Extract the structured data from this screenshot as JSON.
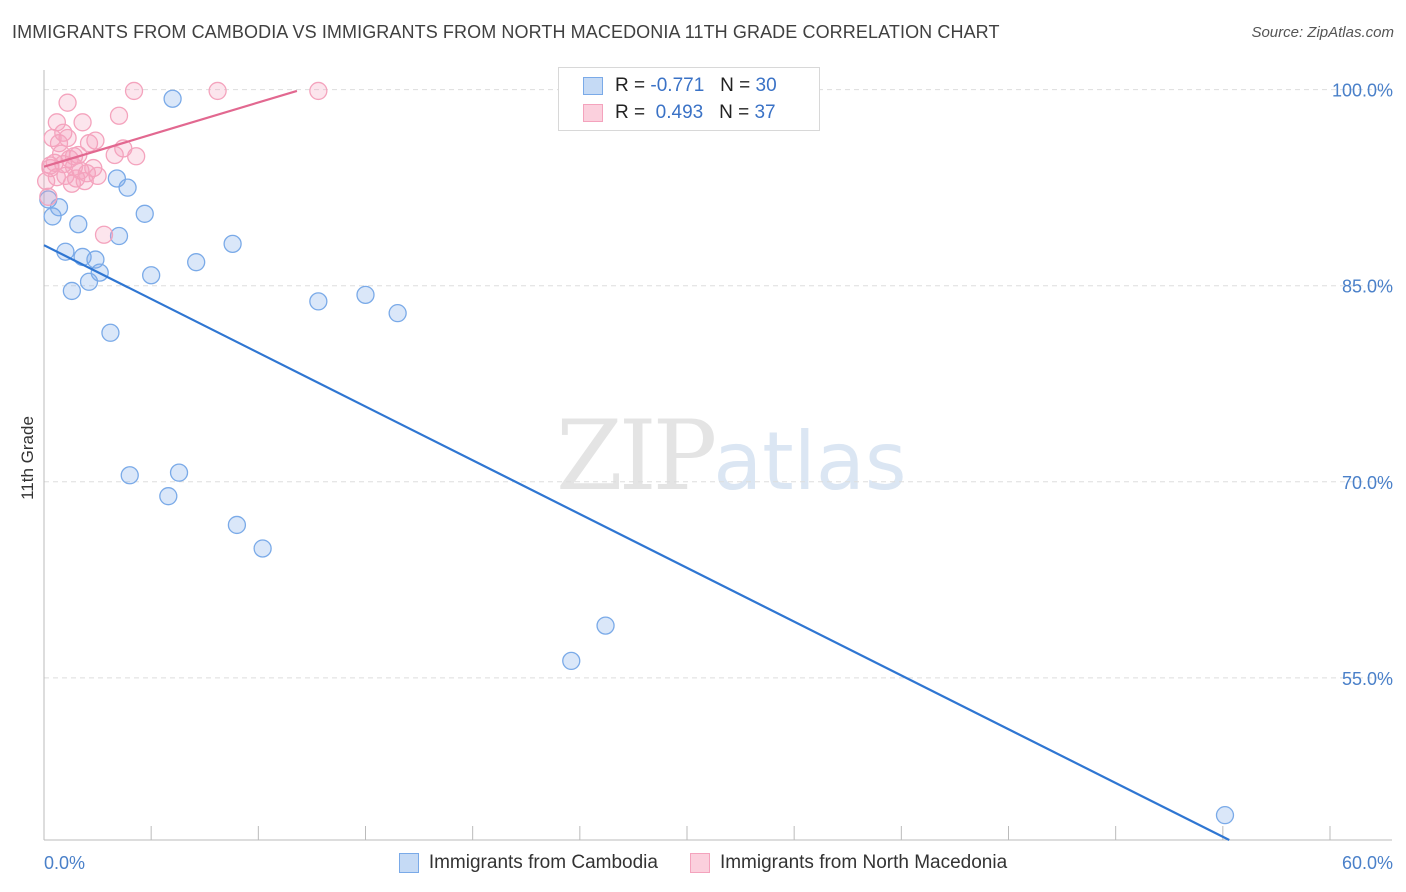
{
  "chart_data": {
    "type": "scatter",
    "title": "IMMIGRANTS FROM CAMBODIA VS IMMIGRANTS FROM NORTH MACEDONIA 11TH GRADE CORRELATION CHART",
    "source": "Source: ZipAtlas.com",
    "ylabel": "11th Grade",
    "xlim": [
      0,
      60
    ],
    "ylim": [
      42.6,
      101.5
    ],
    "x_tick_labels": [
      "0.0%",
      "60.0%"
    ],
    "y_ticks": [
      100,
      85,
      70,
      55
    ],
    "y_tick_labels": [
      "100.0%",
      "85.0%",
      "70.0%",
      "55.0%"
    ],
    "watermark": {
      "zip": "ZIP",
      "atlas": "atlas"
    },
    "series": [
      {
        "name": "Immigrants from Cambodia",
        "color": "#7aaae8",
        "line_color": "#2f76d2",
        "R": "-0.771",
        "N": "30",
        "trend": {
          "x": [
            0,
            55.3
          ],
          "y": [
            88.1,
            42.6
          ]
        },
        "points": [
          {
            "x": 0.2,
            "y": 91.6
          },
          {
            "x": 0.4,
            "y": 90.3
          },
          {
            "x": 0.7,
            "y": 91.0
          },
          {
            "x": 1.0,
            "y": 87.6
          },
          {
            "x": 1.3,
            "y": 84.6
          },
          {
            "x": 1.6,
            "y": 89.7
          },
          {
            "x": 1.8,
            "y": 87.2
          },
          {
            "x": 2.1,
            "y": 85.3
          },
          {
            "x": 2.4,
            "y": 87.0
          },
          {
            "x": 2.6,
            "y": 86.0
          },
          {
            "x": 3.1,
            "y": 81.4
          },
          {
            "x": 3.4,
            "y": 93.2
          },
          {
            "x": 3.5,
            "y": 88.8
          },
          {
            "x": 3.9,
            "y": 92.5
          },
          {
            "x": 4.0,
            "y": 70.5
          },
          {
            "x": 4.7,
            "y": 90.5
          },
          {
            "x": 5.0,
            "y": 85.8
          },
          {
            "x": 5.8,
            "y": 68.9
          },
          {
            "x": 6.0,
            "y": 99.3
          },
          {
            "x": 6.3,
            "y": 70.7
          },
          {
            "x": 7.1,
            "y": 86.8
          },
          {
            "x": 8.8,
            "y": 88.2
          },
          {
            "x": 9.0,
            "y": 66.7
          },
          {
            "x": 10.2,
            "y": 64.9
          },
          {
            "x": 12.8,
            "y": 83.8
          },
          {
            "x": 15.0,
            "y": 84.3
          },
          {
            "x": 16.5,
            "y": 82.9
          },
          {
            "x": 24.6,
            "y": 56.3
          },
          {
            "x": 26.2,
            "y": 59.0
          },
          {
            "x": 55.1,
            "y": 44.5
          }
        ]
      },
      {
        "name": "Immigrants from North Macedonia",
        "color": "#f4a3bd",
        "line_color": "#e26890",
        "R": "0.493",
        "N": "37",
        "trend": {
          "x": [
            0,
            11.8
          ],
          "y": [
            94.1,
            99.9
          ]
        },
        "points": [
          {
            "x": 0.1,
            "y": 93.0
          },
          {
            "x": 0.2,
            "y": 91.8
          },
          {
            "x": 0.3,
            "y": 94.2
          },
          {
            "x": 0.4,
            "y": 96.3
          },
          {
            "x": 0.5,
            "y": 94.4
          },
          {
            "x": 0.6,
            "y": 97.5
          },
          {
            "x": 0.7,
            "y": 95.9
          },
          {
            "x": 0.8,
            "y": 95.1
          },
          {
            "x": 0.9,
            "y": 96.7
          },
          {
            "x": 1.0,
            "y": 93.4
          },
          {
            "x": 1.1,
            "y": 96.3
          },
          {
            "x": 1.1,
            "y": 99.0
          },
          {
            "x": 1.2,
            "y": 94.7
          },
          {
            "x": 1.3,
            "y": 92.8
          },
          {
            "x": 1.4,
            "y": 94.9
          },
          {
            "x": 1.5,
            "y": 93.2
          },
          {
            "x": 1.6,
            "y": 95.0
          },
          {
            "x": 1.7,
            "y": 93.8
          },
          {
            "x": 1.8,
            "y": 97.5
          },
          {
            "x": 2.0,
            "y": 93.6
          },
          {
            "x": 2.1,
            "y": 95.9
          },
          {
            "x": 2.3,
            "y": 94.0
          },
          {
            "x": 2.5,
            "y": 93.4
          },
          {
            "x": 2.8,
            "y": 88.9
          },
          {
            "x": 3.3,
            "y": 95.0
          },
          {
            "x": 3.5,
            "y": 98.0
          },
          {
            "x": 3.7,
            "y": 95.5
          },
          {
            "x": 4.3,
            "y": 94.9
          },
          {
            "x": 4.2,
            "y": 99.9
          },
          {
            "x": 8.1,
            "y": 99.9
          },
          {
            "x": 12.8,
            "y": 99.9
          },
          {
            "x": 0.3,
            "y": 94.0
          },
          {
            "x": 0.9,
            "y": 94.3
          },
          {
            "x": 1.4,
            "y": 94.1
          },
          {
            "x": 0.6,
            "y": 93.3
          },
          {
            "x": 1.9,
            "y": 93.0
          },
          {
            "x": 2.4,
            "y": 96.1
          }
        ]
      }
    ]
  },
  "legend": {
    "r_label": "R =",
    "n_label": "N ="
  }
}
